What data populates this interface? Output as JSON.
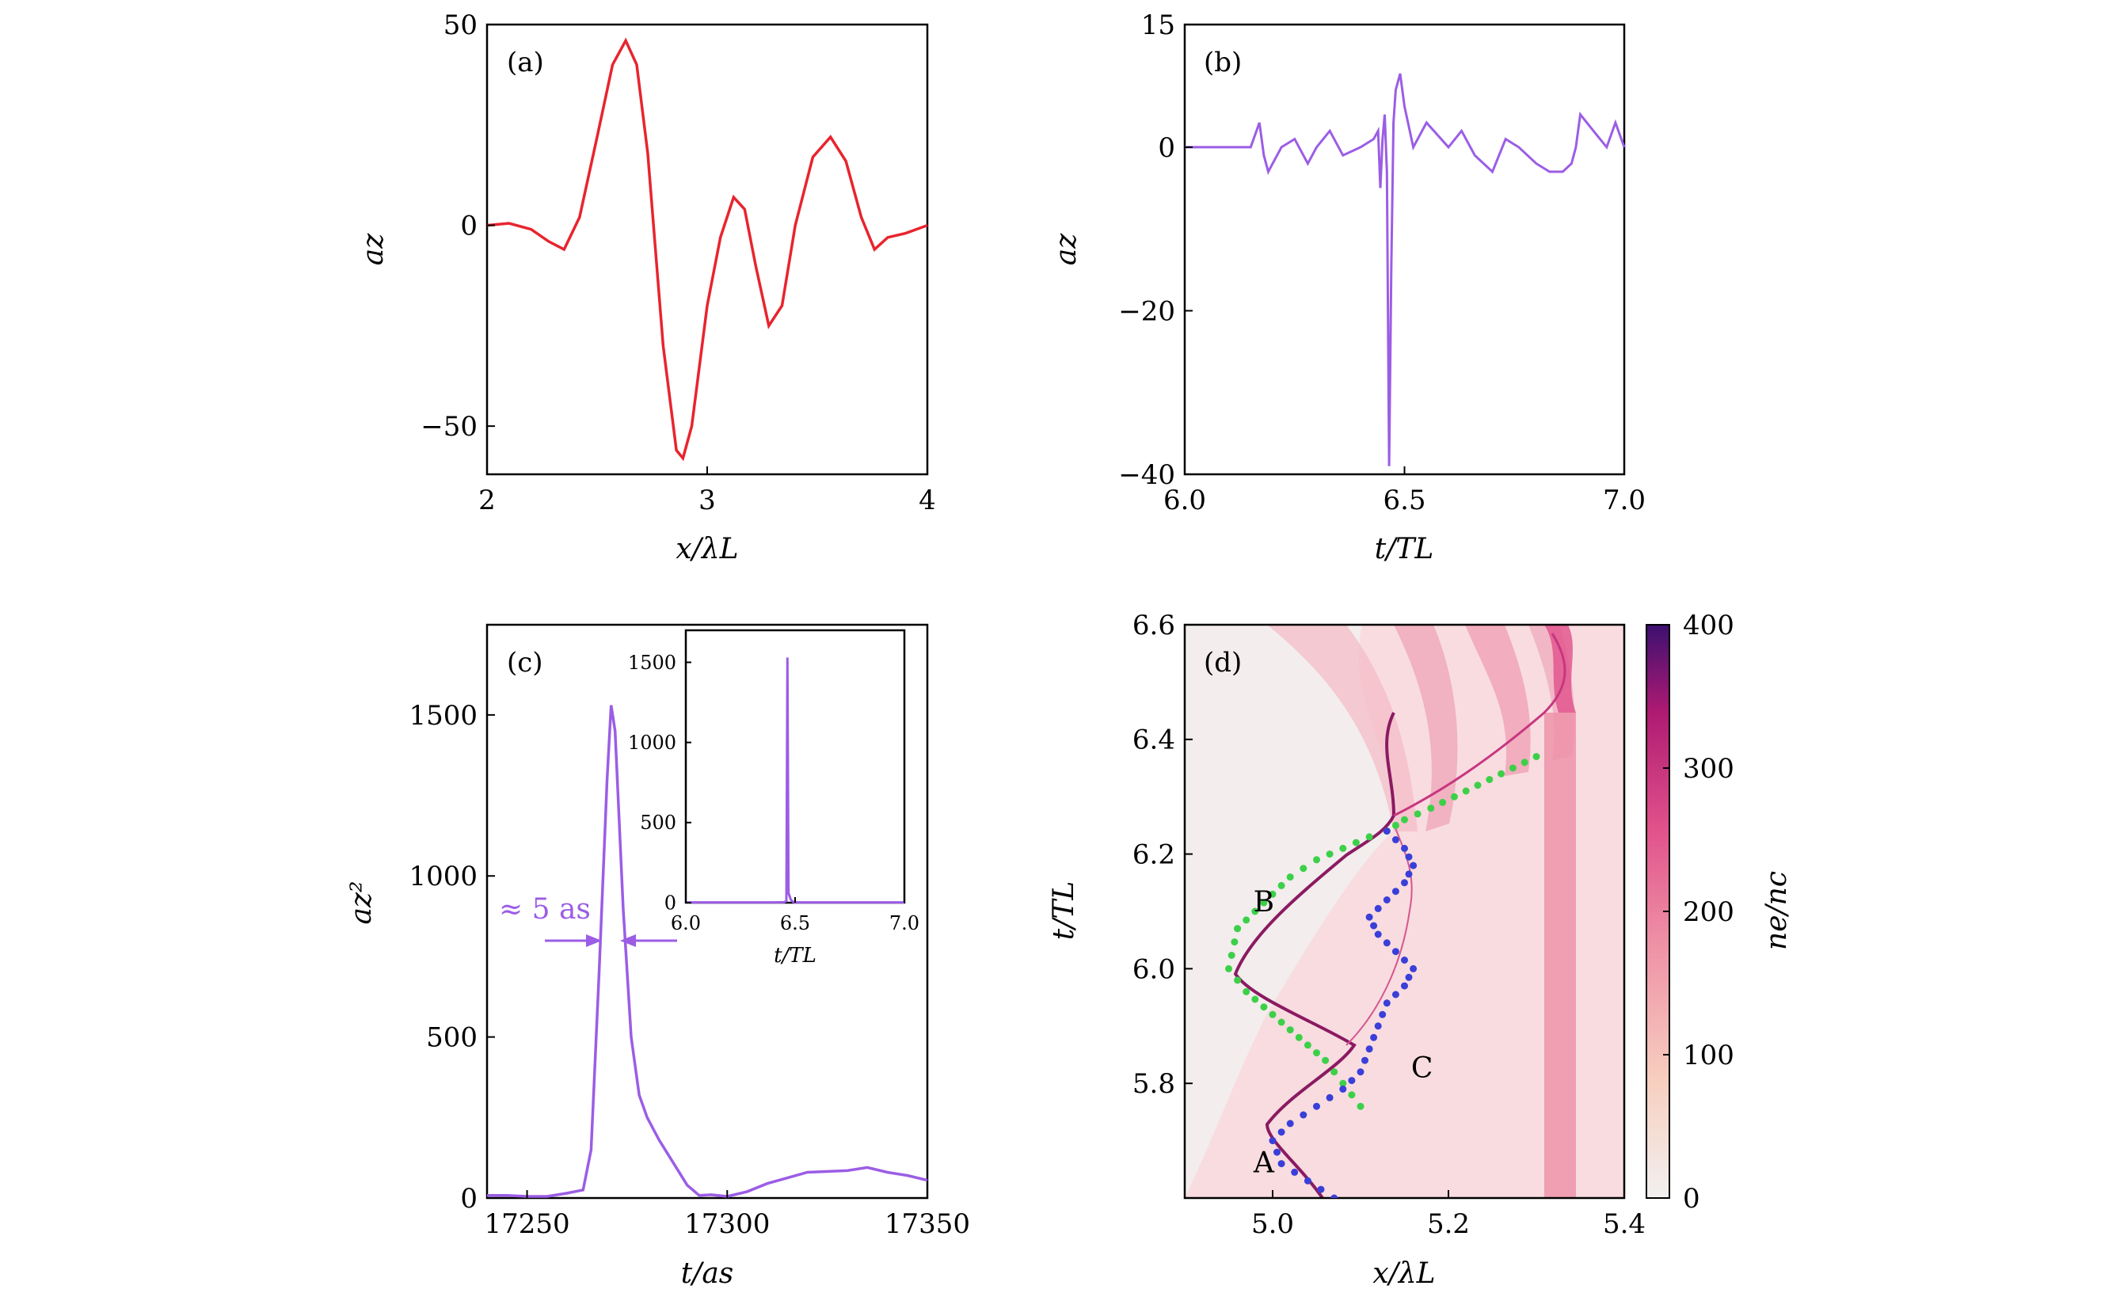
{
  "chart_data": [
    {
      "panel": "(a)",
      "type": "line",
      "xlabel": "x/λL",
      "ylabel": "az",
      "xlim": [
        2,
        4
      ],
      "ylim": [
        -62,
        50
      ],
      "xticks": [
        "2",
        "3",
        "4"
      ],
      "yticks": [
        "50",
        "0",
        "−50"
      ],
      "series": [
        {
          "color": "#e8242e",
          "x": [
            2.0,
            2.1,
            2.2,
            2.28,
            2.35,
            2.42,
            2.5,
            2.57,
            2.63,
            2.68,
            2.73,
            2.8,
            2.86,
            2.89,
            2.93,
            3.0,
            3.06,
            3.12,
            3.17,
            3.22,
            3.28,
            3.34,
            3.4,
            3.48,
            3.56,
            3.63,
            3.7,
            3.76,
            3.82,
            3.9,
            4.0
          ],
          "y": [
            0,
            0.5,
            -1,
            -4,
            -6,
            2,
            22,
            40,
            46,
            40,
            18,
            -30,
            -56,
            -58,
            -50,
            -20,
            -3,
            7,
            4,
            -10,
            -25,
            -20,
            0,
            17,
            22,
            16,
            2,
            -6,
            -3,
            -2,
            0
          ]
        }
      ]
    },
    {
      "panel": "(b)",
      "type": "line",
      "xlabel": "t/TL",
      "ylabel": "az",
      "xlim": [
        6.0,
        7.0
      ],
      "ylim": [
        -40,
        15
      ],
      "xticks": [
        "6.0",
        "6.5",
        "7.0"
      ],
      "yticks": [
        "15",
        "0",
        "−20",
        "−40"
      ],
      "series": [
        {
          "color": "#9b5de5",
          "x": [
            6.0,
            6.05,
            6.1,
            6.15,
            6.17,
            6.18,
            6.19,
            6.2,
            6.22,
            6.25,
            6.28,
            6.3,
            6.33,
            6.36,
            6.4,
            6.43,
            6.44,
            6.445,
            6.45,
            6.455,
            6.46,
            6.465,
            6.47,
            6.475,
            6.48,
            6.49,
            6.5,
            6.52,
            6.55,
            6.6,
            6.63,
            6.66,
            6.7,
            6.73,
            6.76,
            6.8,
            6.83,
            6.86,
            6.88,
            6.89,
            6.9,
            6.93,
            6.96,
            6.98,
            7.0
          ],
          "y": [
            0,
            0,
            0,
            0,
            3,
            -1,
            -3,
            -2,
            0,
            1,
            -2,
            0,
            2,
            -1,
            0,
            1,
            2,
            -5,
            1,
            4,
            -3,
            -39,
            -15,
            3,
            7,
            9,
            5,
            0,
            3,
            0,
            2,
            -1,
            -3,
            1,
            0,
            -2,
            -3,
            -3,
            -2,
            0,
            4,
            2,
            0,
            3,
            0
          ]
        }
      ]
    },
    {
      "panel": "(c)",
      "type": "line",
      "xlabel": "t/as",
      "ylabel": "az²",
      "xlim": [
        17240,
        17350
      ],
      "ylim": [
        0,
        1780
      ],
      "xticks": [
        "17250",
        "17300",
        "17350"
      ],
      "yticks": [
        "0",
        "500",
        "1000",
        "1500"
      ],
      "annotation": "≈ 5 as",
      "series": [
        {
          "color": "#9b5de5",
          "x": [
            17240,
            17245,
            17250,
            17255,
            17260,
            17264,
            17266,
            17268,
            17270,
            17271,
            17272,
            17274,
            17276,
            17278,
            17280,
            17283,
            17286,
            17290,
            17293,
            17296,
            17300,
            17305,
            17310,
            17320,
            17330,
            17335,
            17340,
            17345,
            17350
          ],
          "y": [
            8,
            8,
            5,
            5,
            15,
            25,
            150,
            700,
            1300,
            1530,
            1450,
            900,
            500,
            320,
            250,
            180,
            120,
            40,
            8,
            10,
            5,
            20,
            45,
            80,
            85,
            95,
            80,
            70,
            55
          ]
        }
      ],
      "inset": {
        "xlabel": "t/TL",
        "xlim": [
          6.0,
          7.0
        ],
        "ylim": [
          0,
          1700
        ],
        "xticks": [
          "6.0",
          "6.5",
          "7.0"
        ],
        "yticks": [
          "0",
          "500",
          "1000",
          "1500"
        ],
        "series": [
          {
            "color": "#9b5de5",
            "x": [
              6.0,
              6.4,
              6.45,
              6.46,
              6.465,
              6.47,
              6.475,
              6.48,
              6.49,
              6.5,
              6.55,
              7.0
            ],
            "y": [
              2,
              2,
              3,
              10,
              1530,
              60,
              40,
              20,
              5,
              2,
              2,
              2
            ]
          }
        ]
      }
    },
    {
      "panel": "(d)",
      "type": "heatmap",
      "xlabel": "x/λL",
      "ylabel": "t/TL",
      "xlim": [
        4.9,
        5.4
      ],
      "ylim": [
        5.6,
        6.6
      ],
      "xticks": [
        "5.0",
        "5.2",
        "5.4"
      ],
      "yticks": [
        "5.8",
        "6.0",
        "6.2",
        "6.4",
        "6.6"
      ],
      "colorbar": {
        "label": "ne/nc",
        "range": [
          0,
          400
        ],
        "ticks": [
          "0",
          "100",
          "200",
          "300",
          "400"
        ],
        "colors": [
          "#f2f0f0",
          "#f7d0c0",
          "#ee8fa5",
          "#e0508a",
          "#ad1a72",
          "#3c1070"
        ]
      },
      "labels": [
        {
          "text": "A",
          "x": 4.99,
          "y": 5.645
        },
        {
          "text": "B",
          "x": 4.99,
          "y": 6.1
        },
        {
          "text": "C",
          "x": 5.17,
          "y": 5.81
        }
      ],
      "trajectories": [
        {
          "name": "green",
          "color": "#3cd048",
          "x": [
            4.96,
            4.98,
            5.0,
            5.02,
            5.05,
            5.08,
            5.11,
            5.13,
            5.15,
            5.18,
            5.22,
            5.26,
            5.3
          ],
          "y": [
            6.07,
            6.1,
            6.13,
            6.16,
            6.19,
            6.21,
            6.23,
            6.24,
            6.26,
            6.28,
            6.31,
            6.34,
            6.37
          ]
        },
        {
          "name": "green-lower",
          "color": "#3cd048",
          "x": [
            4.96,
            4.95,
            4.97,
            5.0,
            5.03,
            5.06,
            5.08,
            5.1
          ],
          "y": [
            6.07,
            6.0,
            5.96,
            5.92,
            5.88,
            5.84,
            5.8,
            5.76
          ]
        },
        {
          "name": "blue",
          "color": "#3a3fd8",
          "x": [
            5.07,
            5.04,
            5.01,
            5.0,
            5.02,
            5.05,
            5.08,
            5.1,
            5.11,
            5.12,
            5.13,
            5.15,
            5.16,
            5.14,
            5.12,
            5.11,
            5.13,
            5.15,
            5.16,
            5.15,
            5.13
          ],
          "y": [
            5.6,
            5.63,
            5.66,
            5.7,
            5.73,
            5.76,
            5.79,
            5.82,
            5.86,
            5.9,
            5.94,
            5.97,
            6.0,
            6.03,
            6.06,
            6.09,
            6.12,
            6.15,
            6.18,
            6.21,
            6.24
          ]
        }
      ]
    }
  ],
  "panel_labels": [
    "(a)",
    "(b)",
    "(c)",
    "(d)"
  ]
}
